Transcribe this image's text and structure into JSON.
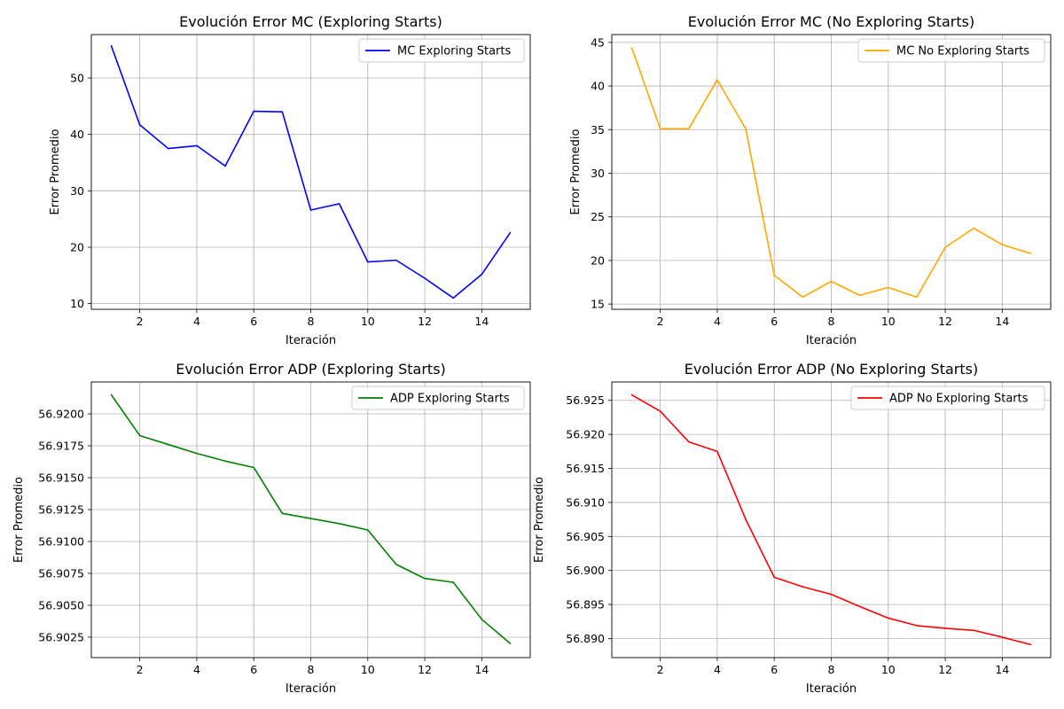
{
  "chart_data": [
    {
      "type": "line",
      "title": "Evolución Error MC (Exploring Starts)",
      "xlabel": "Iteración",
      "ylabel": "Error Promedio",
      "xlim": [
        0.3,
        15.7
      ],
      "ylim": [
        9.0,
        57.7
      ],
      "xticks": [
        2,
        4,
        6,
        8,
        10,
        12,
        14
      ],
      "yticks": [
        10,
        20,
        30,
        40,
        50
      ],
      "ytick_decimals": 0,
      "grid": true,
      "legend_position": "top-right",
      "series": [
        {
          "name": "MC Exploring Starts",
          "color": "#0000ff",
          "x": [
            1,
            2,
            3,
            4,
            5,
            6,
            7,
            8,
            9,
            10,
            11,
            12,
            13,
            14,
            15
          ],
          "y": [
            55.7,
            41.7,
            37.5,
            38.0,
            34.4,
            44.1,
            44.0,
            26.6,
            27.7,
            17.4,
            17.7,
            14.5,
            11.0,
            15.2,
            22.6
          ]
        }
      ]
    },
    {
      "type": "line",
      "title": "Evolución Error MC (No Exploring Starts)",
      "xlabel": "Iteración",
      "ylabel": "Error Promedio",
      "xlim": [
        0.3,
        15.7
      ],
      "ylim": [
        14.4,
        45.9
      ],
      "xticks": [
        2,
        4,
        6,
        8,
        10,
        12,
        14
      ],
      "yticks": [
        15,
        20,
        25,
        30,
        35,
        40,
        45
      ],
      "ytick_decimals": 0,
      "grid": true,
      "legend_position": "top-right",
      "series": [
        {
          "name": "MC No Exploring Starts",
          "color": "#ffa500",
          "x": [
            1,
            2,
            3,
            4,
            5,
            6,
            7,
            8,
            9,
            10,
            11,
            12,
            13,
            14,
            15
          ],
          "y": [
            44.4,
            35.1,
            35.1,
            40.7,
            35.1,
            18.3,
            15.8,
            17.6,
            16.0,
            16.9,
            15.8,
            21.5,
            23.7,
            21.8,
            20.8
          ]
        }
      ]
    },
    {
      "type": "line",
      "title": "Evolución Error ADP (Exploring Starts)",
      "xlabel": "Iteración",
      "ylabel": "Error Promedio",
      "xlim": [
        0.3,
        15.7
      ],
      "ylim": [
        56.9009,
        56.9225
      ],
      "xticks": [
        2,
        4,
        6,
        8,
        10,
        12,
        14
      ],
      "yticks": [
        56.9025,
        56.905,
        56.9075,
        56.91,
        56.9125,
        56.915,
        56.9175,
        56.92
      ],
      "ytick_decimals": 4,
      "grid": true,
      "legend_position": "top-right",
      "series": [
        {
          "name": "ADP Exploring Starts",
          "color": "#008000",
          "x": [
            1,
            2,
            3,
            4,
            5,
            6,
            7,
            8,
            9,
            10,
            11,
            12,
            13,
            14,
            15
          ],
          "y": [
            56.9215,
            56.9183,
            56.9176,
            56.9169,
            56.9163,
            56.9158,
            56.9122,
            56.9118,
            56.9114,
            56.9109,
            56.9082,
            56.9071,
            56.9068,
            56.9039,
            56.902
          ]
        }
      ]
    },
    {
      "type": "line",
      "title": "Evolución Error ADP (No Exploring Starts)",
      "xlabel": "Iteración",
      "ylabel": "Error Promedio",
      "xlim": [
        0.3,
        15.7
      ],
      "ylim": [
        56.8872,
        56.9277
      ],
      "xticks": [
        2,
        4,
        6,
        8,
        10,
        12,
        14
      ],
      "yticks": [
        56.89,
        56.895,
        56.9,
        56.905,
        56.91,
        56.915,
        56.92,
        56.925
      ],
      "ytick_decimals": 3,
      "grid": true,
      "legend_position": "top-right",
      "series": [
        {
          "name": "ADP No Exploring Starts",
          "color": "#ff0000",
          "x": [
            1,
            2,
            3,
            4,
            5,
            6,
            7,
            8,
            9,
            10,
            11,
            12,
            13,
            14,
            15
          ],
          "y": [
            56.9258,
            56.9234,
            56.9189,
            56.9175,
            56.9075,
            56.899,
            56.8976,
            56.8965,
            56.8947,
            56.893,
            56.8919,
            56.8915,
            56.8912,
            56.8902,
            56.8891
          ]
        }
      ]
    }
  ]
}
